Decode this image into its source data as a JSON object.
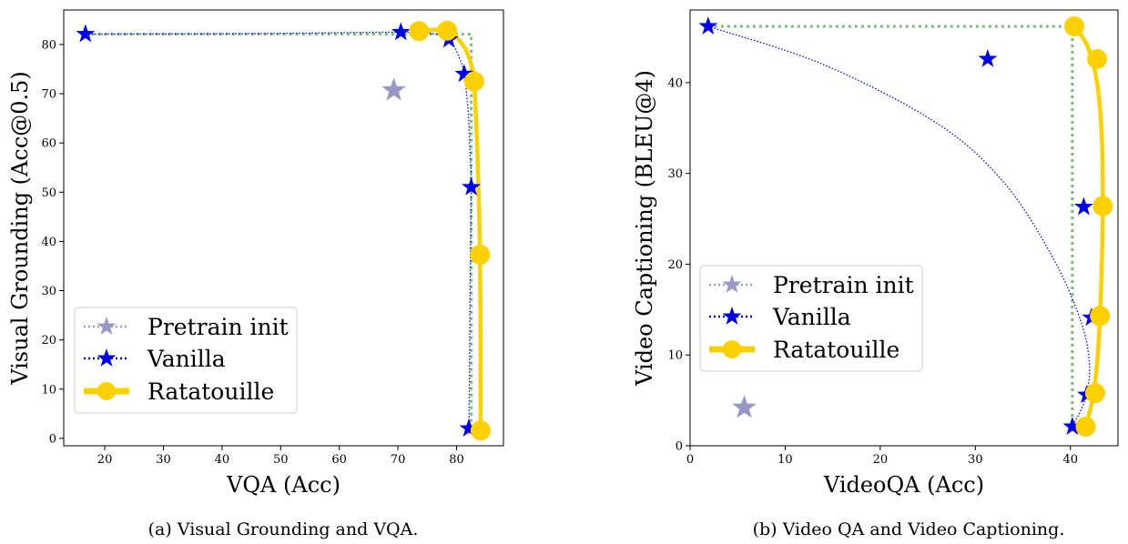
{
  "colors": {
    "pretrain": "#9898c8",
    "vanilla": "#0000e6",
    "ratatouille": "#ffd000",
    "frontier": "#6cc46c"
  },
  "chart_data": [
    {
      "type": "scatter",
      "xlabel": "VQA (Acc)",
      "ylabel": "Visual Grounding (Acc@0.5)",
      "caption": "(a) Visual Grounding and VQA.",
      "xlim": [
        13,
        88
      ],
      "ylim": [
        -1.5,
        87
      ],
      "xticks": [
        20,
        30,
        40,
        50,
        60,
        70,
        80
      ],
      "yticks": [
        0,
        10,
        20,
        30,
        40,
        50,
        60,
        70,
        80
      ],
      "legend_position": "lower-left",
      "series": [
        {
          "name": "Pretrain init",
          "marker": "star",
          "points": [
            [
              69.3,
              70.7
            ]
          ]
        },
        {
          "name": "Vanilla",
          "marker": "star",
          "points": [
            [
              16.7,
              82.1
            ],
            [
              70.5,
              82.5
            ],
            [
              78.7,
              81.0
            ],
            [
              81.3,
              74.0
            ],
            [
              82.5,
              51.0
            ],
            [
              82.1,
              2.0
            ]
          ],
          "curve": [
            [
              16.7,
              82.1
            ],
            [
              45,
              82.2
            ],
            [
              70.5,
              82.5
            ],
            [
              76,
              82.2
            ],
            [
              78.7,
              81.0
            ],
            [
              80.4,
              77.5
            ],
            [
              81.3,
              74.0
            ],
            [
              82.0,
              66
            ],
            [
              82.3,
              58
            ],
            [
              82.5,
              51.0
            ],
            [
              82.3,
              30
            ],
            [
              82.2,
              12
            ],
            [
              82.1,
              2.0
            ]
          ]
        },
        {
          "name": "Ratatouille",
          "marker": "circle",
          "points": [
            [
              73.6,
              82.7
            ],
            [
              78.4,
              82.8
            ],
            [
              83.0,
              72.5
            ],
            [
              84.0,
              37.3
            ],
            [
              84.1,
              1.6
            ]
          ],
          "curve": [
            [
              73.6,
              82.7
            ],
            [
              78.4,
              82.8
            ],
            [
              81.3,
              79.5
            ],
            [
              82.6,
              75.5
            ],
            [
              83.0,
              72.5
            ],
            [
              83.5,
              60
            ],
            [
              83.8,
              48
            ],
            [
              84.0,
              37.3
            ],
            [
              84.1,
              20
            ],
            [
              84.1,
              1.6
            ]
          ]
        }
      ],
      "frontier": [
        [
          16.7,
          82.1
        ],
        [
          82.5,
          82.1
        ],
        [
          82.5,
          2.0
        ]
      ]
    },
    {
      "type": "scatter",
      "xlabel": "VideoQA (Acc)",
      "ylabel": "Video Captioning (BLEU@4)",
      "caption": "(b) Video QA and Video Captioning.",
      "xlim": [
        0,
        45
      ],
      "ylim": [
        0,
        48
      ],
      "xticks": [
        0,
        10,
        20,
        30,
        40
      ],
      "yticks": [
        0,
        10,
        20,
        30,
        40
      ],
      "legend_position": "center-left",
      "series": [
        {
          "name": "Pretrain init",
          "marker": "star",
          "points": [
            [
              5.7,
              4.2
            ]
          ]
        },
        {
          "name": "Vanilla",
          "marker": "star",
          "points": [
            [
              1.9,
              46.2
            ],
            [
              31.3,
              42.6
            ],
            [
              41.4,
              26.3
            ],
            [
              42.2,
              14.1
            ],
            [
              41.7,
              5.6
            ],
            [
              40.2,
              2.1
            ]
          ],
          "curve": [
            [
              1.9,
              46.2
            ],
            [
              14,
              42
            ],
            [
              26,
              35.5
            ],
            [
              33,
              29
            ],
            [
              38,
              21
            ],
            [
              41.0,
              14
            ],
            [
              42.0,
              9
            ],
            [
              41.5,
              5
            ],
            [
              40.2,
              2.1
            ]
          ]
        },
        {
          "name": "Ratatouille",
          "marker": "circle",
          "points": [
            [
              40.4,
              46.2
            ],
            [
              42.8,
              42.6
            ],
            [
              43.4,
              26.4
            ],
            [
              43.1,
              14.3
            ],
            [
              42.6,
              5.8
            ],
            [
              41.6,
              2.1
            ]
          ],
          "curve": [
            [
              40.4,
              46.2
            ],
            [
              41.8,
              44
            ],
            [
              42.8,
              40
            ],
            [
              43.3,
              34
            ],
            [
              43.4,
              26.4
            ],
            [
              43.3,
              20
            ],
            [
              43.1,
              14.3
            ],
            [
              42.8,
              9
            ],
            [
              42.3,
              5
            ],
            [
              41.6,
              2.1
            ]
          ]
        }
      ],
      "frontier": [
        [
          1.9,
          46.2
        ],
        [
          40.2,
          46.2
        ],
        [
          40.2,
          2.1
        ]
      ]
    }
  ]
}
